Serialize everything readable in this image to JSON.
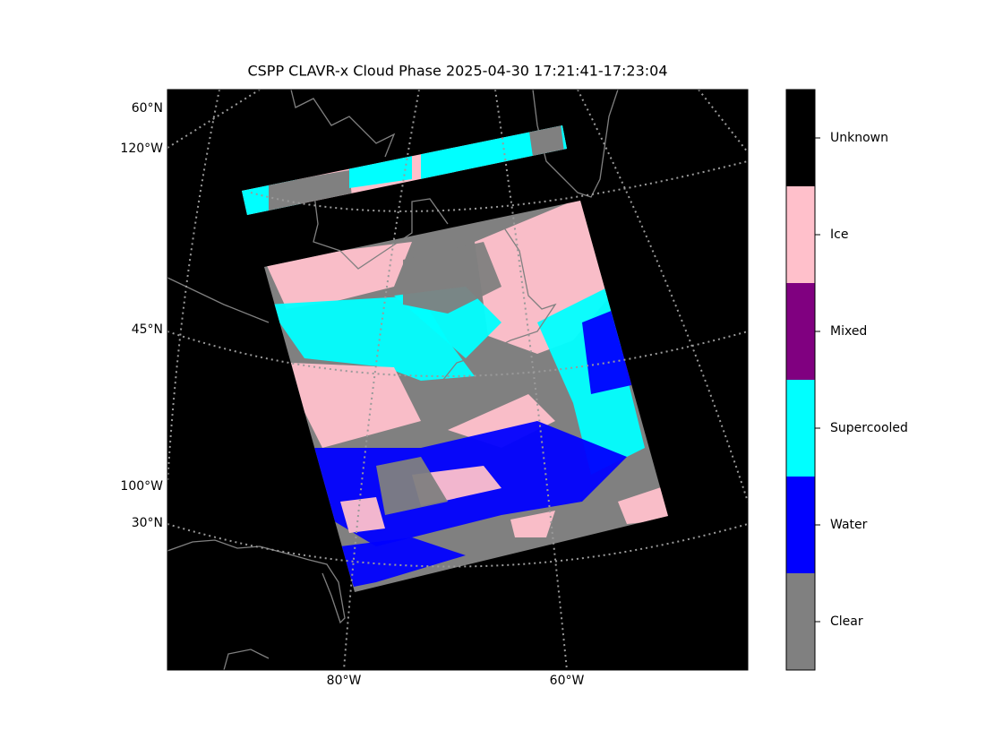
{
  "title": "CSPP CLAVR-x Cloud Phase 2025-04-30 17:21:41-17:23:04",
  "map": {
    "lat_labels": [
      "60°N",
      "45°N",
      "30°N"
    ],
    "lon_labels_left": [
      "120°W",
      "100°W"
    ],
    "lon_labels_bottom": [
      "80°W",
      "60°W"
    ]
  },
  "legend": {
    "categories": [
      "Clear",
      "Water",
      "Supercooled",
      "Mixed",
      "Ice",
      "Unknown"
    ],
    "colors": [
      "#808080",
      "#0000ff",
      "#00ffff",
      "#800080",
      "#ffc0cb",
      "#000000"
    ]
  }
}
